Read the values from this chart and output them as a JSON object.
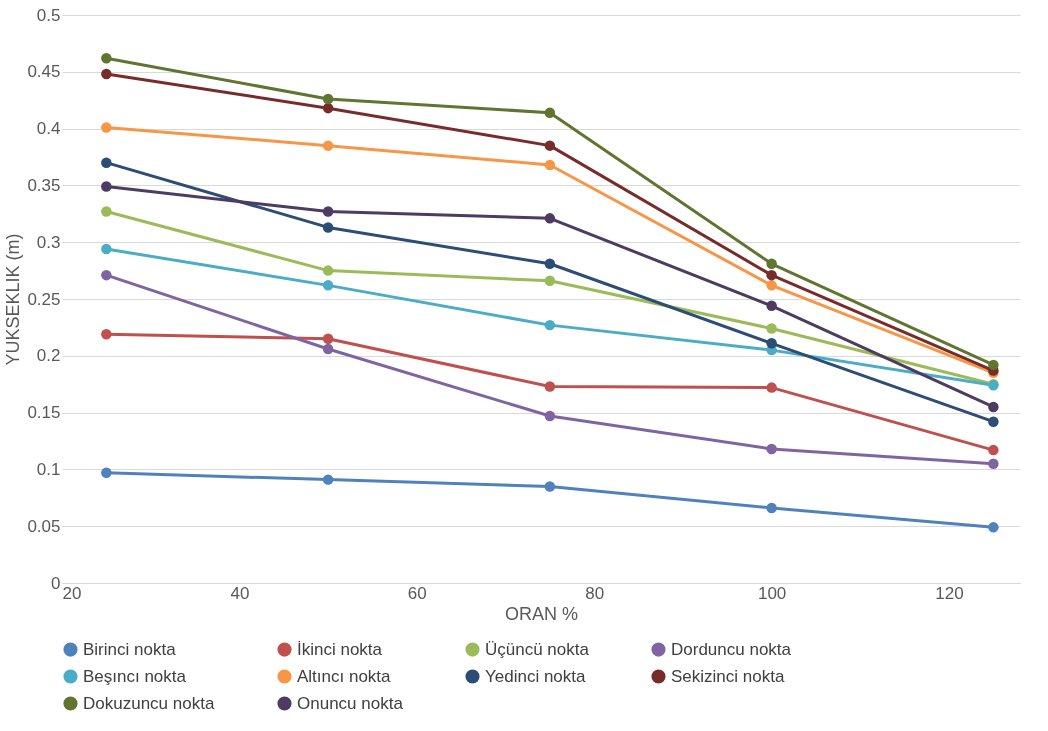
{
  "chart_data": {
    "type": "line",
    "xlabel": "ORAN %",
    "ylabel": "YUKSEKLIK (m)",
    "x": [
      25,
      50,
      75,
      100,
      125
    ],
    "xlim": [
      20,
      128
    ],
    "xticks": [
      20,
      40,
      60,
      80,
      100,
      120
    ],
    "ylim": [
      0,
      0.5
    ],
    "yticks": [
      0,
      0.05,
      0.1,
      0.15,
      0.2,
      0.25,
      0.3,
      0.35,
      0.4,
      0.45,
      0.5
    ],
    "grid": "y",
    "legend": "bottom",
    "marker": "circle",
    "line_style": "solid",
    "series": [
      {
        "name": "Birinci nokta",
        "color": "#4f81bd",
        "values": [
          0.097,
          0.091,
          0.085,
          0.066,
          0.049
        ]
      },
      {
        "name": "İkinci nokta",
        "color": "#c0504d",
        "values": [
          0.219,
          0.215,
          0.173,
          0.172,
          0.117
        ]
      },
      {
        "name": "Üçüncü nokta",
        "color": "#9bbb59",
        "values": [
          0.327,
          0.275,
          0.266,
          0.224,
          0.175
        ]
      },
      {
        "name": "Dorduncu nokta",
        "color": "#8064a2",
        "values": [
          0.271,
          0.206,
          0.147,
          0.118,
          0.105
        ]
      },
      {
        "name": "Beşıncı nokta",
        "color": "#4bacc6",
        "values": [
          0.294,
          0.262,
          0.227,
          0.205,
          0.174
        ]
      },
      {
        "name": "Altıncı nokta",
        "color": "#f79646",
        "values": [
          0.401,
          0.385,
          0.368,
          0.262,
          0.185
        ]
      },
      {
        "name": "Yedinci nokta",
        "color": "#2c4d75",
        "values": [
          0.37,
          0.313,
          0.281,
          0.211,
          0.142
        ]
      },
      {
        "name": "Sekizinci nokta",
        "color": "#772c2a",
        "values": [
          0.448,
          0.418,
          0.385,
          0.271,
          0.187
        ]
      },
      {
        "name": "Dokuzuncu nokta",
        "color": "#5f7530",
        "values": [
          0.462,
          0.426,
          0.414,
          0.281,
          0.192
        ]
      },
      {
        "name": "Onuncu nokta",
        "color": "#4d3b62",
        "values": [
          0.349,
          0.327,
          0.321,
          0.244,
          0.155
        ]
      }
    ]
  }
}
